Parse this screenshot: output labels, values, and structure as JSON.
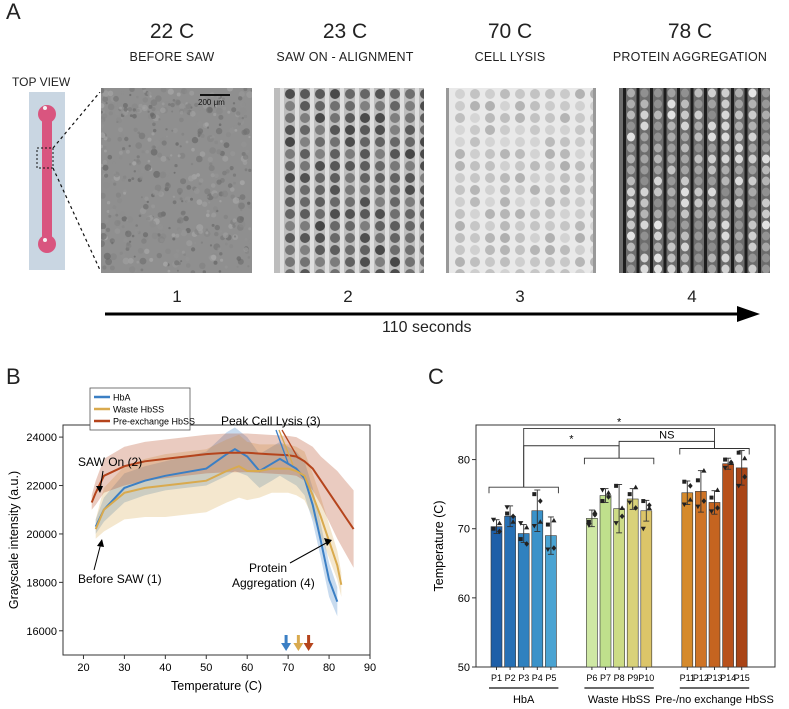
{
  "panelA": {
    "letter": "A",
    "top_view_label": "TOP VIEW",
    "scale_bar_label": "200 μm",
    "frames": [
      {
        "temp": "22 C",
        "stage": "BEFORE SAW",
        "step": "1"
      },
      {
        "temp": "23 C",
        "stage": "SAW ON - ALIGNMENT",
        "step": "2"
      },
      {
        "temp": "70 C",
        "stage": "CELL LYSIS",
        "step": "3"
      },
      {
        "temp": "78 C",
        "stage": "PROTEIN AGGREGATION",
        "step": "4"
      }
    ],
    "timeline_label": "110 seconds"
  },
  "panelB": {
    "letter": "B",
    "annotations": {
      "saw_on": "SAW On (2)",
      "before_saw": "Before SAW (1)",
      "peak_lysis": "Peak Cell Lysis (3)",
      "protein_agg_1": "Protein",
      "protein_agg_2": "Aggregation (4)"
    },
    "colors": {
      "hba": "#3b7fc4",
      "waste": "#d9aa4e",
      "pre": "#b5441c"
    }
  },
  "panelC": {
    "letter": "C",
    "sig_labels": [
      "*",
      "NS",
      "*"
    ],
    "group_labels": [
      "HbA",
      "Waste HbSS",
      "Pre-/no exchange HbSS"
    ]
  },
  "chart_data": [
    {
      "type": "line",
      "xlabel": "Temperature (C)",
      "ylabel": "Grayscale intensity (a.u.)",
      "xlim": [
        15,
        90
      ],
      "ylim": [
        15000,
        24500
      ],
      "xticks": [
        20,
        30,
        40,
        50,
        60,
        70,
        80,
        90
      ],
      "yticks": [
        16000,
        18000,
        20000,
        22000,
        24000
      ],
      "legend": "top-left",
      "series": [
        {
          "name": "HbA",
          "color": "#3b7fc4",
          "x": [
            23,
            25,
            30,
            35,
            40,
            45,
            50,
            55,
            57,
            60,
            63,
            66,
            68,
            70,
            72,
            74,
            76,
            78,
            80,
            82
          ],
          "y": [
            20300,
            21000,
            21900,
            22200,
            22400,
            22550,
            22700,
            23300,
            23500,
            23200,
            22600,
            22900,
            23100,
            22900,
            22700,
            22300,
            21200,
            19700,
            18100,
            17200
          ],
          "band": [
            300,
            500,
            600,
            600,
            600,
            650,
            700,
            900,
            900,
            800,
            700,
            700,
            700,
            700,
            700,
            700,
            700,
            700,
            700,
            600
          ]
        },
        {
          "name": "Waste HbSS",
          "color": "#d9aa4e",
          "x": [
            23,
            25,
            30,
            35,
            40,
            45,
            50,
            55,
            58,
            60,
            63,
            66,
            70,
            72,
            74,
            76,
            78,
            80,
            82,
            83
          ],
          "y": [
            20200,
            21000,
            21700,
            21900,
            22000,
            22100,
            22200,
            22600,
            22800,
            22600,
            22600,
            22700,
            22700,
            22600,
            22400,
            21600,
            20700,
            19700,
            18700,
            17900
          ],
          "band": [
            400,
            900,
            1100,
            1200,
            1300,
            1300,
            1300,
            1300,
            1300,
            1200,
            1100,
            1000,
            1000,
            1000,
            1000,
            900,
            800,
            700,
            600,
            500
          ]
        },
        {
          "name": "Pre-exchange HbSS",
          "color": "#b5441c",
          "x": [
            22,
            23,
            25,
            30,
            35,
            40,
            45,
            50,
            55,
            60,
            65,
            70,
            72,
            74,
            76,
            78,
            80,
            82,
            84,
            86
          ],
          "y": [
            21300,
            21700,
            22400,
            22800,
            23000,
            23100,
            23200,
            23300,
            23350,
            23350,
            23300,
            23250,
            23200,
            23000,
            22700,
            22200,
            21700,
            21200,
            20700,
            20200
          ],
          "band": [
            300,
            500,
            700,
            800,
            800,
            800,
            800,
            800,
            800,
            800,
            800,
            800,
            800,
            800,
            900,
            1000,
            1200,
            1400,
            1500,
            1600
          ]
        }
      ],
      "markers": [
        {
          "x": 69.5,
          "color": "#3b7fc4"
        },
        {
          "x": 72.5,
          "color": "#d9aa4e"
        },
        {
          "x": 75,
          "color": "#b5441c"
        }
      ]
    },
    {
      "type": "bar",
      "ylabel": "Temperature (C)",
      "ylim": [
        50,
        85
      ],
      "yticks": [
        50,
        60,
        70,
        80
      ],
      "categories": [
        "P1",
        "P2",
        "P3",
        "P4",
        "P5",
        "P6",
        "P7",
        "P8",
        "P9",
        "P10",
        "P11",
        "P12",
        "P13",
        "P14",
        "P15"
      ],
      "values": [
        70.3,
        71.8,
        69.3,
        72.6,
        69.0,
        71.5,
        74.8,
        72.9,
        74.3,
        72.6,
        75.2,
        75.4,
        73.8,
        79.4,
        78.8
      ],
      "errors": [
        1.0,
        1.5,
        1.3,
        3.0,
        2.7,
        1.2,
        1.0,
        3.5,
        1.5,
        1.5,
        1.7,
        3.0,
        1.7,
        0.8,
        2.5
      ],
      "groups": [
        "HbA",
        "HbA",
        "HbA",
        "HbA",
        "HbA",
        "Waste HbSS",
        "Waste HbSS",
        "Waste HbSS",
        "Waste HbSS",
        "Waste HbSS",
        "Pre-/no exchange HbSS",
        "Pre-/no exchange HbSS",
        "Pre-/no exchange HbSS",
        "Pre-/no exchange HbSS",
        "Pre-/no exchange HbSS"
      ],
      "colors": [
        "#1e5fa8",
        "#2670b5",
        "#2f81bf",
        "#3a92c9",
        "#4aa3d2",
        "#cfe8a4",
        "#bfe08c",
        "#cddc86",
        "#d9d27a",
        "#dcc569",
        "#d58a2c",
        "#cf7426",
        "#c56420",
        "#b8511b",
        "#a94416"
      ],
      "points": [
        [
          70.0,
          70.8,
          71.3,
          69.6
        ],
        [
          72.2,
          71.0,
          73.1,
          71.8
        ],
        [
          68.5,
          70.2,
          70.8,
          67.8
        ],
        [
          75.0,
          71.0,
          70.4,
          74.0
        ],
        [
          70.6,
          71.2,
          67.0,
          67.2
        ],
        [
          71.0,
          72.4,
          70.5,
          72.0
        ],
        [
          74.0,
          75.2,
          75.6,
          74.6
        ],
        [
          76.2,
          73.0,
          70.8,
          71.8
        ],
        [
          75.0,
          76.0,
          73.8,
          73.0
        ],
        [
          74.0,
          73.0,
          70.0,
          73.4
        ],
        [
          76.8,
          74.2,
          73.5,
          76.2
        ],
        [
          77.0,
          78.4,
          73.2,
          74.0
        ],
        [
          74.5,
          75.6,
          72.5,
          73.0
        ],
        [
          80.0,
          79.5,
          78.8,
          79.6
        ],
        [
          81.0,
          80.2,
          76.2,
          77.5
        ]
      ]
    }
  ]
}
